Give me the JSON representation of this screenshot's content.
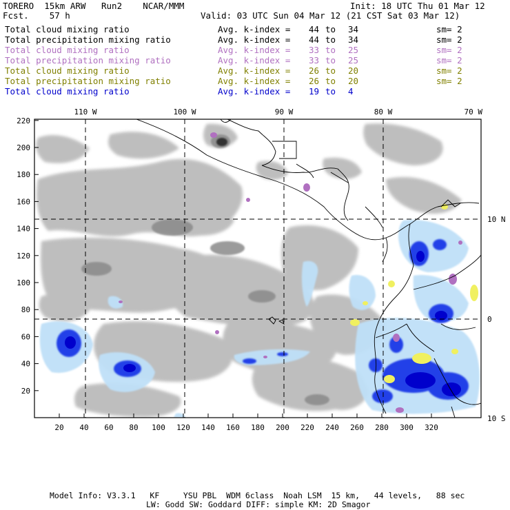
{
  "header": {
    "left_line1": "TORERO  15km ARW   Run2    NCAR/MMM",
    "left_line2": "Fcst.    57 h",
    "init": "Init: 18 UTC Thu 01 Mar 12",
    "valid": "Valid: 03 UTC Sun 04 Mar 12 (21 CST Sat 03 Mar 12)"
  },
  "legend": [
    {
      "field": "Total cloud mixing ratio",
      "kidx": "Avg. k-index = ",
      "a": "44",
      "to": "to",
      "b": "34",
      "sm": "sm= 2",
      "color": "#000000"
    },
    {
      "field": "Total precipitation mixing ratio",
      "kidx": "Avg. k-index = ",
      "a": "44",
      "to": "to",
      "b": "34",
      "sm": "sm= 2",
      "color": "#000000"
    },
    {
      "field": "Total cloud mixing ratio",
      "kidx": "Avg. k-index = ",
      "a": "33",
      "to": "to",
      "b": "25",
      "sm": "sm= 2",
      "color": "#b070c0"
    },
    {
      "field": "Total precipitation mixing ratio",
      "kidx": "Avg. k-index = ",
      "a": "33",
      "to": "to",
      "b": "25",
      "sm": "sm= 2",
      "color": "#b070c0"
    },
    {
      "field": "Total cloud mixing ratio",
      "kidx": "Avg. k-index = ",
      "a": "26",
      "to": "to",
      "b": "20",
      "sm": "sm= 2",
      "color": "#808000"
    },
    {
      "field": "Total precipitation mixing ratio",
      "kidx": "Avg. k-index = ",
      "a": "26",
      "to": "to",
      "b": "20",
      "sm": "sm= 2",
      "color": "#808000"
    },
    {
      "field": "Total cloud mixing ratio",
      "kidx": "Avg. k-index = ",
      "a": "19",
      "to": "to",
      "b": "4",
      "sm": "",
      "color": "#0000cc"
    }
  ],
  "map": {
    "x_ticks": [
      "20",
      "40",
      "60",
      "80",
      "100",
      "120",
      "140",
      "160",
      "180",
      "200",
      "220",
      "240",
      "260",
      "280",
      "300",
      "320"
    ],
    "y_ticks": [
      "20",
      "40",
      "60",
      "80",
      "100",
      "120",
      "140",
      "160",
      "180",
      "200",
      "220"
    ],
    "lon_labels": [
      "110 W",
      "100 W",
      "90 W",
      "80 W",
      "70 W"
    ],
    "lat_labels": [
      "10 N",
      "0",
      "10 S"
    ]
  },
  "footer": {
    "line1": "Model Info: V3.3.1   KF     YSU PBL  WDM 6class  Noah LSM  15 km,   44 levels,   88 sec",
    "line2": "LW: Godd SW: Goddard DIFF: simple KM: 2D Smagor"
  }
}
